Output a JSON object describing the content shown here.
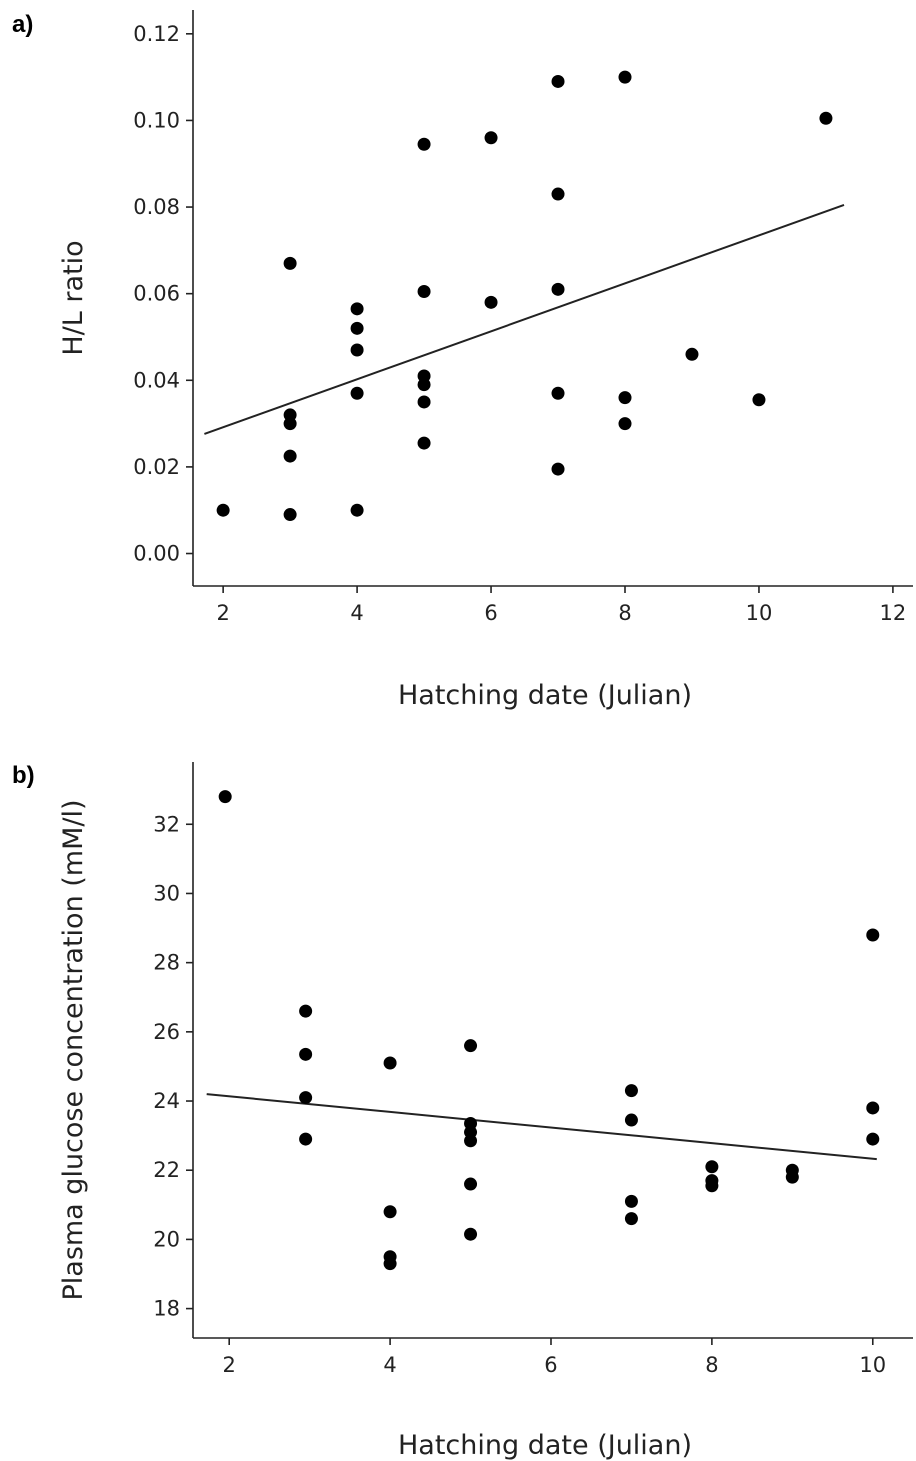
{
  "chart_data": [
    {
      "type": "scatter",
      "panel_label": "a)",
      "xlabel": "Hatching date (Julian)",
      "ylabel": "H/L ratio",
      "xlim": [
        1.55,
        12.3
      ],
      "ylim": [
        -0.0075,
        0.1255
      ],
      "xticks": [
        2,
        4,
        6,
        8,
        10,
        12
      ],
      "xtick_labels": [
        "2",
        "4",
        "6",
        "8",
        "10",
        "12"
      ],
      "yticks": [
        0.0,
        0.02,
        0.04,
        0.06,
        0.08,
        0.1,
        0.12
      ],
      "ytick_labels": [
        "0.00",
        "0.02",
        "0.04",
        "0.06",
        "0.08",
        "0.10",
        "0.12"
      ],
      "grid": false,
      "points": [
        {
          "x": 2,
          "y": 0.01
        },
        {
          "x": 3,
          "y": 0.067
        },
        {
          "x": 3,
          "y": 0.032
        },
        {
          "x": 3,
          "y": 0.03
        },
        {
          "x": 3,
          "y": 0.0225
        },
        {
          "x": 3,
          "y": 0.009
        },
        {
          "x": 4,
          "y": 0.0565
        },
        {
          "x": 4,
          "y": 0.052
        },
        {
          "x": 4,
          "y": 0.047
        },
        {
          "x": 4,
          "y": 0.037
        },
        {
          "x": 4,
          "y": 0.01
        },
        {
          "x": 5,
          "y": 0.0945
        },
        {
          "x": 5,
          "y": 0.0605
        },
        {
          "x": 5,
          "y": 0.041
        },
        {
          "x": 5,
          "y": 0.039
        },
        {
          "x": 5,
          "y": 0.035
        },
        {
          "x": 5,
          "y": 0.0255
        },
        {
          "x": 6,
          "y": 0.096
        },
        {
          "x": 6,
          "y": 0.058
        },
        {
          "x": 7,
          "y": 0.109
        },
        {
          "x": 7,
          "y": 0.083
        },
        {
          "x": 7,
          "y": 0.061
        },
        {
          "x": 7,
          "y": 0.037
        },
        {
          "x": 7,
          "y": 0.0195
        },
        {
          "x": 8,
          "y": 0.11
        },
        {
          "x": 8,
          "y": 0.036
        },
        {
          "x": 8,
          "y": 0.03
        },
        {
          "x": 9,
          "y": 0.046
        },
        {
          "x": 10,
          "y": 0.0355
        },
        {
          "x": 11,
          "y": 0.1005
        }
      ],
      "fit_line": {
        "x": [
          1.72,
          11.27
        ],
        "y": [
          0.0276,
          0.0805
        ]
      }
    },
    {
      "type": "scatter",
      "panel_label": "b)",
      "xlabel": "Hatching date (Julian)",
      "ylabel": "Plasma glucose concentration (mM/l)",
      "xlim": [
        1.55,
        10.5
      ],
      "ylim": [
        17.15,
        33.8
      ],
      "xticks": [
        2,
        4,
        6,
        8,
        10
      ],
      "xtick_labels": [
        "2",
        "4",
        "6",
        "8",
        "10"
      ],
      "yticks": [
        18,
        20,
        22,
        24,
        26,
        28,
        30,
        32
      ],
      "ytick_labels": [
        "18",
        "20",
        "22",
        "24",
        "26",
        "28",
        "30",
        "32"
      ],
      "grid": false,
      "points": [
        {
          "x": 1.95,
          "y": 32.8
        },
        {
          "x": 2.95,
          "y": 26.6
        },
        {
          "x": 2.95,
          "y": 25.35
        },
        {
          "x": 2.95,
          "y": 24.1
        },
        {
          "x": 2.95,
          "y": 22.9
        },
        {
          "x": 4.0,
          "y": 25.1
        },
        {
          "x": 4.0,
          "y": 20.8
        },
        {
          "x": 4.0,
          "y": 19.5
        },
        {
          "x": 4.0,
          "y": 19.3
        },
        {
          "x": 5.0,
          "y": 25.6
        },
        {
          "x": 5.0,
          "y": 23.35
        },
        {
          "x": 5.0,
          "y": 23.1
        },
        {
          "x": 5.0,
          "y": 22.85
        },
        {
          "x": 5.0,
          "y": 21.6
        },
        {
          "x": 5.0,
          "y": 20.15
        },
        {
          "x": 7.0,
          "y": 24.3
        },
        {
          "x": 7.0,
          "y": 23.45
        },
        {
          "x": 7.0,
          "y": 21.1
        },
        {
          "x": 7.0,
          "y": 20.6
        },
        {
          "x": 8.0,
          "y": 22.1
        },
        {
          "x": 8.0,
          "y": 21.7
        },
        {
          "x": 8.0,
          "y": 21.55
        },
        {
          "x": 9.0,
          "y": 22.0
        },
        {
          "x": 9.0,
          "y": 21.8
        },
        {
          "x": 10.0,
          "y": 28.8
        },
        {
          "x": 10.0,
          "y": 23.8
        },
        {
          "x": 10.0,
          "y": 22.9
        }
      ],
      "fit_line": {
        "x": [
          1.72,
          10.05
        ],
        "y": [
          24.2,
          22.32
        ]
      }
    }
  ]
}
